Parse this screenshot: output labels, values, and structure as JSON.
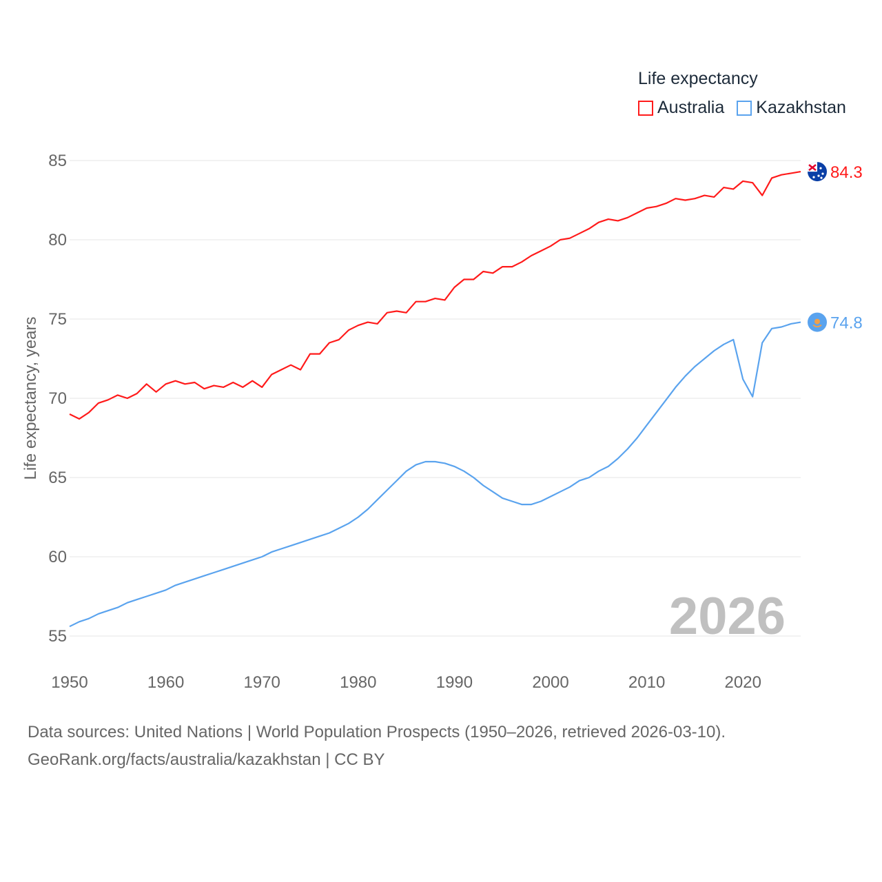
{
  "chart_data": {
    "type": "line",
    "title": "Life expectancy",
    "xlabel": "",
    "ylabel": "Life expectancy, years",
    "xlim": [
      1950,
      2026
    ],
    "ylim": [
      53,
      86.5
    ],
    "yticks": [
      55,
      60,
      65,
      70,
      75,
      80,
      85
    ],
    "xticks": [
      1950,
      1960,
      1970,
      1980,
      1990,
      2000,
      2010,
      2020
    ],
    "grid": true,
    "legend_placement": "top-right",
    "year_label": "2026",
    "x": [
      1950,
      1951,
      1952,
      1953,
      1954,
      1955,
      1956,
      1957,
      1958,
      1959,
      1960,
      1961,
      1962,
      1963,
      1964,
      1965,
      1966,
      1967,
      1968,
      1969,
      1970,
      1971,
      1972,
      1973,
      1974,
      1975,
      1976,
      1977,
      1978,
      1979,
      1980,
      1981,
      1982,
      1983,
      1984,
      1985,
      1986,
      1987,
      1988,
      1989,
      1990,
      1991,
      1992,
      1993,
      1994,
      1995,
      1996,
      1997,
      1998,
      1999,
      2000,
      2001,
      2002,
      2003,
      2004,
      2005,
      2006,
      2007,
      2008,
      2009,
      2010,
      2011,
      2012,
      2013,
      2014,
      2015,
      2016,
      2017,
      2018,
      2019,
      2020,
      2021,
      2022,
      2023,
      2024,
      2025,
      2026
    ],
    "series": [
      {
        "name": "Australia",
        "color": "#ff1a1a",
        "end_label": "84.3",
        "values": [
          69.0,
          68.7,
          69.1,
          69.7,
          69.9,
          70.2,
          70.0,
          70.3,
          70.9,
          70.4,
          70.9,
          71.1,
          70.9,
          71.0,
          70.6,
          70.8,
          70.7,
          71.0,
          70.7,
          71.1,
          70.7,
          71.5,
          71.8,
          72.1,
          71.8,
          72.8,
          72.8,
          73.5,
          73.7,
          74.3,
          74.6,
          74.8,
          74.7,
          75.4,
          75.5,
          75.4,
          76.1,
          76.1,
          76.3,
          76.2,
          77.0,
          77.5,
          77.5,
          78.0,
          77.9,
          78.3,
          78.3,
          78.6,
          79.0,
          79.3,
          79.6,
          80.0,
          80.1,
          80.4,
          80.7,
          81.1,
          81.3,
          81.2,
          81.4,
          81.7,
          82.0,
          82.1,
          82.3,
          82.6,
          82.5,
          82.6,
          82.8,
          82.7,
          83.3,
          83.2,
          83.7,
          83.6,
          82.8,
          83.9,
          84.1,
          84.2,
          84.3
        ]
      },
      {
        "name": "Kazakhstan",
        "color": "#5aa3ee",
        "end_label": "74.8",
        "values": [
          55.6,
          55.9,
          56.1,
          56.4,
          56.6,
          56.8,
          57.1,
          57.3,
          57.5,
          57.7,
          57.9,
          58.2,
          58.4,
          58.6,
          58.8,
          59.0,
          59.2,
          59.4,
          59.6,
          59.8,
          60.0,
          60.3,
          60.5,
          60.7,
          60.9,
          61.1,
          61.3,
          61.5,
          61.8,
          62.1,
          62.5,
          63.0,
          63.6,
          64.2,
          64.8,
          65.4,
          65.8,
          66.0,
          66.0,
          65.9,
          65.7,
          65.4,
          65.0,
          64.5,
          64.1,
          63.7,
          63.5,
          63.3,
          63.3,
          63.5,
          63.8,
          64.1,
          64.4,
          64.8,
          65.0,
          65.4,
          65.7,
          66.2,
          66.8,
          67.5,
          68.3,
          69.1,
          69.9,
          70.7,
          71.4,
          72.0,
          72.5,
          73.0,
          73.4,
          73.7,
          71.2,
          70.1,
          73.5,
          74.4,
          74.5,
          74.7,
          74.8
        ]
      }
    ]
  },
  "footer": {
    "line1": "Data sources: United Nations | World Population Prospects (1950–2026, retrieved 2026-03-10).",
    "line2": "GeoRank.org/facts/australia/kazakhstan | CC BY"
  }
}
